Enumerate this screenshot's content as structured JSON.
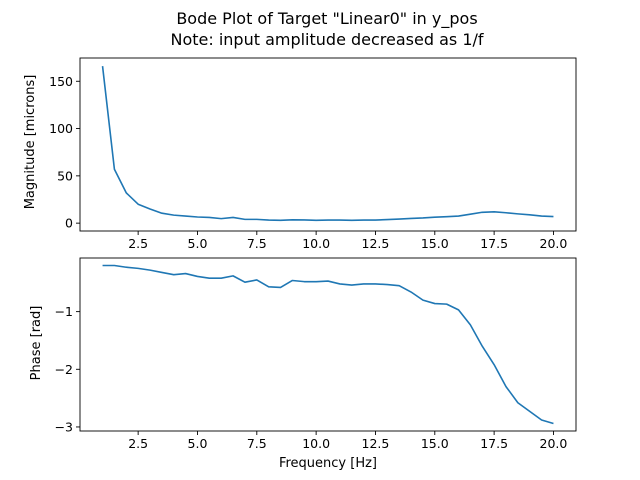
{
  "chart_data": [
    {
      "type": "line",
      "title_lines": [
        "Bode Plot of Target \"Linear0\" in y_pos",
        "Note: input amplitude decreased as 1/f"
      ],
      "xlabel": "",
      "ylabel": "Magnitude [microns]",
      "xlim": [
        0.05,
        20.95
      ],
      "ylim": [
        -8.3,
        174.6
      ],
      "xticks": [
        2.5,
        5.0,
        7.5,
        10.0,
        12.5,
        15.0,
        17.5,
        20.0
      ],
      "xtick_labels": [
        "2.5",
        "5.0",
        "7.5",
        "10.0",
        "12.5",
        "15.0",
        "17.5",
        "20.0"
      ],
      "yticks": [
        0,
        50,
        100,
        150
      ],
      "ytick_labels": [
        "0",
        "50",
        "100",
        "150"
      ],
      "grid": false,
      "color": "#1f77b4",
      "x": [
        1.0,
        1.5,
        2.0,
        2.5,
        3.0,
        3.5,
        4.0,
        4.5,
        5.0,
        5.5,
        6.0,
        6.5,
        7.0,
        7.5,
        8.0,
        8.5,
        9.0,
        9.5,
        10.0,
        10.5,
        11.0,
        11.5,
        12.0,
        12.5,
        13.0,
        13.5,
        14.0,
        14.5,
        15.0,
        15.5,
        16.0,
        16.5,
        17.0,
        17.5,
        18.0,
        18.5,
        19.0,
        19.5,
        20.0
      ],
      "y": [
        166,
        57,
        32,
        20,
        15,
        10.5,
        8.5,
        7.5,
        6.5,
        6,
        4.8,
        6,
        4,
        4,
        3.3,
        3,
        3.5,
        3.4,
        3,
        3.3,
        3.3,
        3,
        3.3,
        3.3,
        3.8,
        4.3,
        5,
        5.5,
        6.3,
        6.8,
        7.5,
        9.5,
        11.5,
        12,
        11,
        9.8,
        8.8,
        7.5,
        7
      ]
    },
    {
      "type": "line",
      "xlabel": "Frequency [Hz]",
      "ylabel": "Phase [rad]",
      "xlim": [
        0.05,
        20.95
      ],
      "ylim": [
        -3.07,
        -0.07
      ],
      "xticks": [
        2.5,
        5.0,
        7.5,
        10.0,
        12.5,
        15.0,
        17.5,
        20.0
      ],
      "xtick_labels": [
        "2.5",
        "5.0",
        "7.5",
        "10.0",
        "12.5",
        "15.0",
        "17.5",
        "20.0"
      ],
      "yticks": [
        -1,
        -2,
        -3
      ],
      "ytick_labels": [
        "−1",
        "−2",
        "−3"
      ],
      "grid": false,
      "color": "#1f77b4",
      "x": [
        1.0,
        1.5,
        2.0,
        2.5,
        3.0,
        3.5,
        4.0,
        4.5,
        5.0,
        5.5,
        6.0,
        6.5,
        7.0,
        7.5,
        8.0,
        8.5,
        9.0,
        9.5,
        10.0,
        10.5,
        11.0,
        11.5,
        12.0,
        12.5,
        13.0,
        13.5,
        14.0,
        14.5,
        15.0,
        15.5,
        16.0,
        16.5,
        17.0,
        17.5,
        18.0,
        18.5,
        19.0,
        19.5,
        20.0
      ],
      "y": [
        -0.2,
        -0.2,
        -0.23,
        -0.25,
        -0.28,
        -0.32,
        -0.36,
        -0.34,
        -0.39,
        -0.42,
        -0.42,
        -0.38,
        -0.49,
        -0.45,
        -0.57,
        -0.58,
        -0.46,
        -0.48,
        -0.48,
        -0.47,
        -0.52,
        -0.54,
        -0.52,
        -0.52,
        -0.53,
        -0.55,
        -0.66,
        -0.8,
        -0.86,
        -0.87,
        -0.97,
        -1.23,
        -1.6,
        -1.92,
        -2.3,
        -2.58,
        -2.73,
        -2.88,
        -2.94
      ]
    }
  ]
}
